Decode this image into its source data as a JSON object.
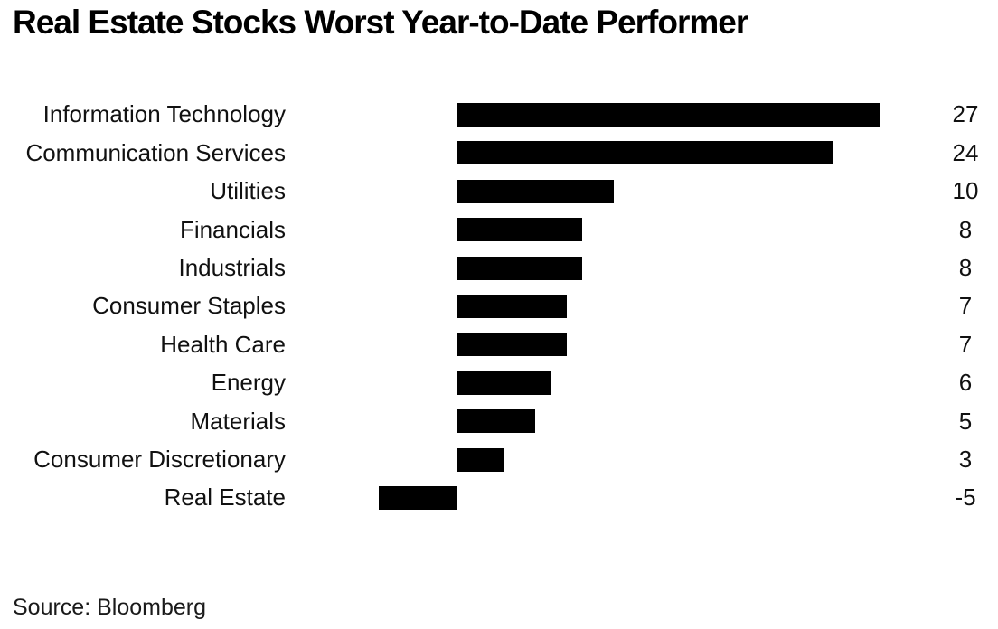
{
  "title": "Real Estate Stocks Worst Year-to-Date Performer",
  "source": "Source: Bloomberg",
  "colors": {
    "bar": "#000000",
    "text": "#111111",
    "background": "#ffffff"
  },
  "chart_data": {
    "type": "bar",
    "orientation": "horizontal",
    "title": "Real Estate Stocks Worst Year-to-Date Performer",
    "categories": [
      "Information Technology",
      "Communication Services",
      "Utilities",
      "Financials",
      "Industrials",
      "Consumer Staples",
      "Health Care",
      "Energy",
      "Materials",
      "Consumer Discretionary",
      "Real Estate"
    ],
    "values": [
      27,
      24,
      10,
      8,
      8,
      7,
      7,
      6,
      5,
      3,
      -5
    ],
    "xlabel": "",
    "ylabel": "",
    "xlim": [
      -11,
      30
    ],
    "grid": false,
    "legend": false,
    "value_labels_shown": true,
    "source": "Source: Bloomberg"
  }
}
